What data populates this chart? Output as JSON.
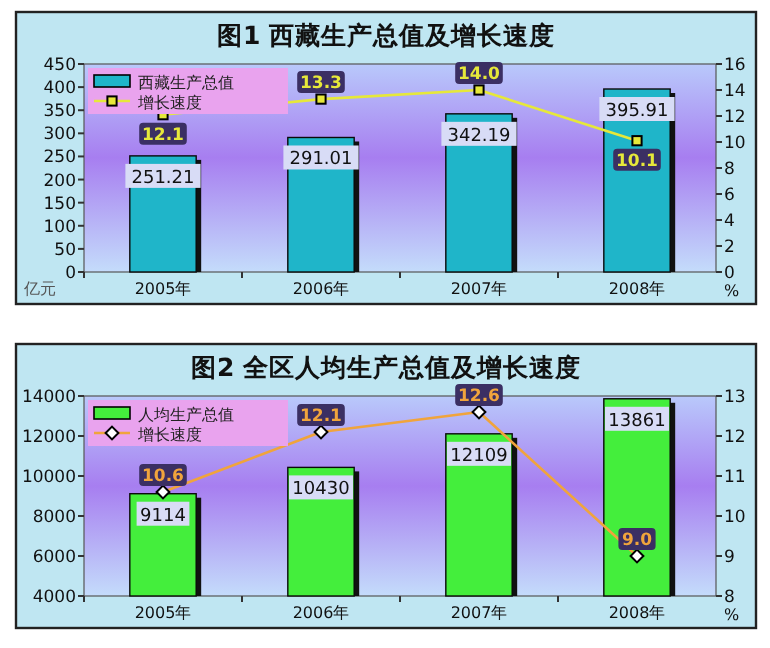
{
  "chart_data": [
    {
      "type": "bar",
      "title": "图1  西藏生产总值及增长速度",
      "categories": [
        "2005年",
        "2006年",
        "2007年",
        "2008年"
      ],
      "ylabel": "亿元",
      "y2label": "%",
      "ylim": [
        0,
        450
      ],
      "yticks": [
        0,
        50,
        100,
        150,
        200,
        250,
        300,
        350,
        400,
        450
      ],
      "y2lim": [
        0,
        16
      ],
      "y2ticks": [
        0,
        2,
        4,
        6,
        8,
        10,
        12,
        14,
        16
      ],
      "legend": "top left",
      "marker": "square",
      "series": [
        {
          "name": "西藏生产总值",
          "color": "#1fb5c9",
          "values": [
            251.21,
            291.01,
            342.19,
            395.91
          ],
          "value_labels": [
            "251.21",
            "291.01",
            "342.19",
            "395.91"
          ]
        },
        {
          "name": "增长速度",
          "type": "line",
          "axis": "y2",
          "color": "#e6e83a",
          "values": [
            12.1,
            13.3,
            14.0,
            10.1
          ],
          "value_labels": [
            "12.1",
            "13.3",
            "14.0",
            "10.1"
          ]
        }
      ]
    },
    {
      "type": "bar",
      "title": "图2  全区人均生产总值及增长速度",
      "categories": [
        "2005年",
        "2006年",
        "2007年",
        "2008年"
      ],
      "y2label": "%",
      "ylim": [
        4000,
        14000
      ],
      "yticks": [
        4000,
        6000,
        8000,
        10000,
        12000,
        14000
      ],
      "y2lim": [
        8,
        13
      ],
      "y2ticks": [
        8,
        9,
        10,
        11,
        12,
        13
      ],
      "legend": "top left",
      "marker": "diamond",
      "series": [
        {
          "name": "人均生产总值",
          "color": "#44ee3c",
          "values": [
            9114,
            10430,
            12109,
            13861
          ],
          "value_labels": [
            "9114",
            "10430",
            "12109",
            "13861"
          ]
        },
        {
          "name": "增长速度",
          "type": "line",
          "axis": "y2",
          "color": "#f0a43c",
          "values": [
            10.6,
            12.1,
            12.6,
            9.0
          ],
          "value_labels": [
            "10.6",
            "12.1",
            "12.6",
            "9.0"
          ]
        }
      ]
    }
  ]
}
